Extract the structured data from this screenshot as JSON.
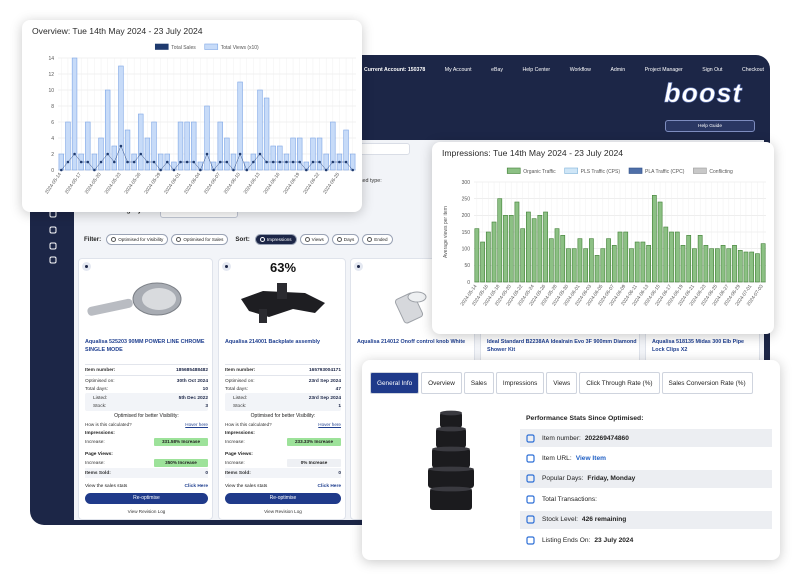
{
  "nav": {
    "account": "Current Account: 150378",
    "items": [
      "My Account",
      "eBay",
      "Help Center",
      "Workflow",
      "Admin",
      "Project Manager",
      "Sign Out",
      "Checkout"
    ],
    "logo": "boost",
    "help": "Help Guide"
  },
  "category_prompt": "Select a category or optimised type:",
  "category_label": "Select a category:",
  "filter_label": "Filter:",
  "filters": [
    "Optimised for Visibility",
    "Optimised for Sales"
  ],
  "sort_label": "Sort:",
  "sorts": [
    "Impressions",
    "Views",
    "Days",
    "Ended"
  ],
  "labels": {
    "item_number": "Item number:",
    "optimised_on": "Optimised on:",
    "total_days": "Total days:",
    "listed": "Listed:",
    "stock": "Stock:",
    "visibility": "Optimised for better Visibility:",
    "how": "How is this calculated?",
    "hover": "Hover here",
    "impressions": "Impressions:",
    "increase": "Increase:",
    "page_views": "Page Views:",
    "items_sold": "Items Sold:",
    "sales_stats": "View the sales stats",
    "click": "Click Here",
    "reoptimise": "Re-optimise",
    "revision": "View Revision Log"
  },
  "products": [
    {
      "title": "Aqualisa 525203 90MM POWER LINE CHROME SINGLE MODE",
      "item_number": "185685488482",
      "optimised_on": "30th Oct 2024",
      "total_days": 10,
      "listed": "5th Dec 2022",
      "stock": 3,
      "impressions_increase": "331.58% Increase",
      "views_increase": "350% Increase",
      "items_sold": 0
    },
    {
      "badge": "63%",
      "title": "Aqualisa 214001 Backplate assembly",
      "item_number": "165793004171",
      "optimised_on": "23rd Sep 2024",
      "total_days": 47,
      "listed": "23rd Sep 2024",
      "stock": 1,
      "impressions_increase": "233.33% Increase",
      "views_increase": "0% Increase",
      "items_sold": 0
    },
    {
      "title": "Aqualisa 214012 Onoff control knob White"
    },
    {
      "title": "Ideal Standard B2238AA Idealrain Evo 3F 900mm Diamond Shower Kit"
    },
    {
      "title": "Aqualisa 518135 Midas 300 Elb Pipe Lock Clips X2"
    }
  ],
  "chart_data": [
    {
      "type": "bar",
      "title": "Overview: Tue 14th May 2024 - 23 July 2024",
      "legend": "top",
      "grid": true,
      "categories": [
        "2024-05-14",
        null,
        null,
        "2024-05-17",
        null,
        null,
        "2024-05-20",
        null,
        null,
        "2024-05-23",
        null,
        null,
        "2024-05-26",
        null,
        null,
        "2024-05-29",
        null,
        null,
        "2024-06-01",
        null,
        null,
        "2024-06-04",
        null,
        null,
        "2024-06-07",
        null,
        null,
        "2024-06-10",
        null,
        null,
        "2024-06-13",
        null,
        null,
        "2024-06-16",
        null,
        null,
        "2024-06-19",
        null,
        null,
        "2024-06-22",
        null,
        null,
        "2024-06-25",
        null,
        null
      ],
      "series": [
        {
          "name": "Total Sales",
          "type": "line",
          "color": "#1f3a6e",
          "values": [
            0,
            1,
            2,
            1,
            1,
            0,
            1,
            2,
            1,
            3,
            1,
            1,
            2,
            1,
            1,
            0,
            1,
            0,
            1,
            1,
            1,
            0,
            2,
            0,
            1,
            1,
            0,
            2,
            0,
            1,
            2,
            1,
            1,
            1,
            1,
            1,
            1,
            0,
            1,
            1,
            0,
            1,
            1,
            1,
            0
          ]
        },
        {
          "name": "Total Views (x10)",
          "color": "#c7dbf8",
          "border": "#7ea6e6",
          "values": [
            2,
            6,
            14,
            2,
            6,
            2,
            4,
            10,
            3,
            13,
            5,
            2,
            7,
            4,
            6,
            2,
            2,
            1,
            6,
            6,
            6,
            1,
            8,
            1,
            6,
            4,
            2,
            11,
            1,
            2,
            10,
            9,
            3,
            3,
            2,
            4,
            4,
            1,
            4,
            4,
            2,
            6,
            2,
            5,
            2
          ]
        }
      ],
      "ylim": [
        0,
        14
      ],
      "yticks": [
        0,
        2,
        4,
        6,
        8,
        10,
        12,
        14
      ]
    },
    {
      "type": "bar",
      "title": "Impressions: Tue 14th May 2024 - 23 July 2024",
      "legend": "top",
      "grid": true,
      "stacked": true,
      "ylabel": "Average views per item",
      "categories": [
        "2024-05-14",
        null,
        "2024-05-16",
        null,
        "2024-05-18",
        null,
        "2024-05-20",
        null,
        "2024-05-22",
        null,
        "2024-05-24",
        null,
        "2024-05-26",
        null,
        "2024-05-28",
        null,
        "2024-05-30",
        null,
        "2024-06-01",
        null,
        "2024-06-03",
        null,
        "2024-06-05",
        null,
        "2024-06-07",
        null,
        "2024-06-09",
        null,
        "2024-06-11",
        null,
        "2024-06-13",
        null,
        "2024-06-15",
        null,
        "2024-06-17",
        null,
        "2024-06-19",
        null,
        "2024-06-21",
        null,
        "2024-06-23",
        null,
        "2024-06-25",
        null,
        "2024-06-27",
        null,
        "2024-06-29",
        null,
        "2024-07-01",
        null,
        "2024-07-03"
      ],
      "series": [
        {
          "name": "Organic Traffic",
          "color": "#8cc084",
          "border": "#3f7f34",
          "values": [
            160,
            120,
            150,
            180,
            250,
            200,
            200,
            240,
            160,
            210,
            190,
            200,
            210,
            130,
            160,
            140,
            100,
            100,
            130,
            100,
            130,
            80,
            100,
            130,
            110,
            150,
            150,
            100,
            120,
            120,
            110,
            260,
            240,
            165,
            150,
            150,
            110,
            140,
            100,
            140,
            110,
            100,
            100,
            110,
            100,
            110,
            95,
            90,
            90,
            85,
            115
          ]
        },
        {
          "name": "PLS Traffic (CPS)",
          "color": "#cfe6f7",
          "border": "#7fb3d9",
          "values": [
            0,
            0,
            0,
            0,
            0,
            0,
            0,
            0,
            0,
            0,
            0,
            0,
            0,
            0,
            0,
            0,
            0,
            0,
            0,
            0,
            0,
            0,
            0,
            0,
            0,
            0,
            0,
            0,
            0,
            0,
            0,
            0,
            0,
            0,
            0,
            0,
            0,
            0,
            0,
            0,
            0,
            0,
            0,
            0,
            0,
            0,
            0,
            0,
            0,
            0,
            0
          ]
        },
        {
          "name": "PLA Traffic (CPC)",
          "color": "#4f6fa8",
          "border": "#2f4f88",
          "values": [
            0,
            0,
            0,
            0,
            0,
            0,
            0,
            0,
            0,
            0,
            0,
            0,
            0,
            0,
            0,
            0,
            0,
            0,
            0,
            0,
            0,
            0,
            0,
            0,
            0,
            0,
            0,
            0,
            0,
            0,
            0,
            0,
            0,
            0,
            0,
            0,
            0,
            0,
            0,
            0,
            0,
            0,
            0,
            0,
            0,
            0,
            0,
            0,
            0,
            0,
            0
          ]
        },
        {
          "name": "Conflicting",
          "color": "#c8c8c8",
          "border": "#999999",
          "values": [
            0,
            0,
            0,
            0,
            0,
            0,
            0,
            0,
            0,
            0,
            0,
            0,
            0,
            0,
            0,
            0,
            0,
            0,
            0,
            0,
            0,
            0,
            0,
            0,
            0,
            0,
            0,
            0,
            0,
            0,
            0,
            0,
            0,
            0,
            0,
            0,
            0,
            0,
            0,
            0,
            0,
            0,
            0,
            0,
            0,
            0,
            0,
            0,
            0,
            0,
            0
          ]
        }
      ],
      "ylim": [
        0,
        300
      ],
      "yticks": [
        0,
        50,
        100,
        150,
        200,
        250,
        300
      ]
    }
  ],
  "info": {
    "tabs": [
      "General Info",
      "Overview",
      "Sales",
      "Impressions",
      "Views",
      "Click Through Rate (%)",
      "Sales Conversion Rate (%)"
    ],
    "active_tab": 0,
    "heading": "Performance Stats Since Optimised:",
    "rows": [
      {
        "label": "Item number:",
        "value": "202269474860"
      },
      {
        "label": "Item URL:",
        "value": "View Item"
      },
      {
        "label": "Popular Days:",
        "value": "Friday, Monday"
      },
      {
        "label": "Total Transactions:"
      },
      {
        "label": "Stock Level:",
        "value": "426 remaining"
      },
      {
        "label": "Listing Ends On:",
        "value": "23 July 2024"
      }
    ]
  }
}
